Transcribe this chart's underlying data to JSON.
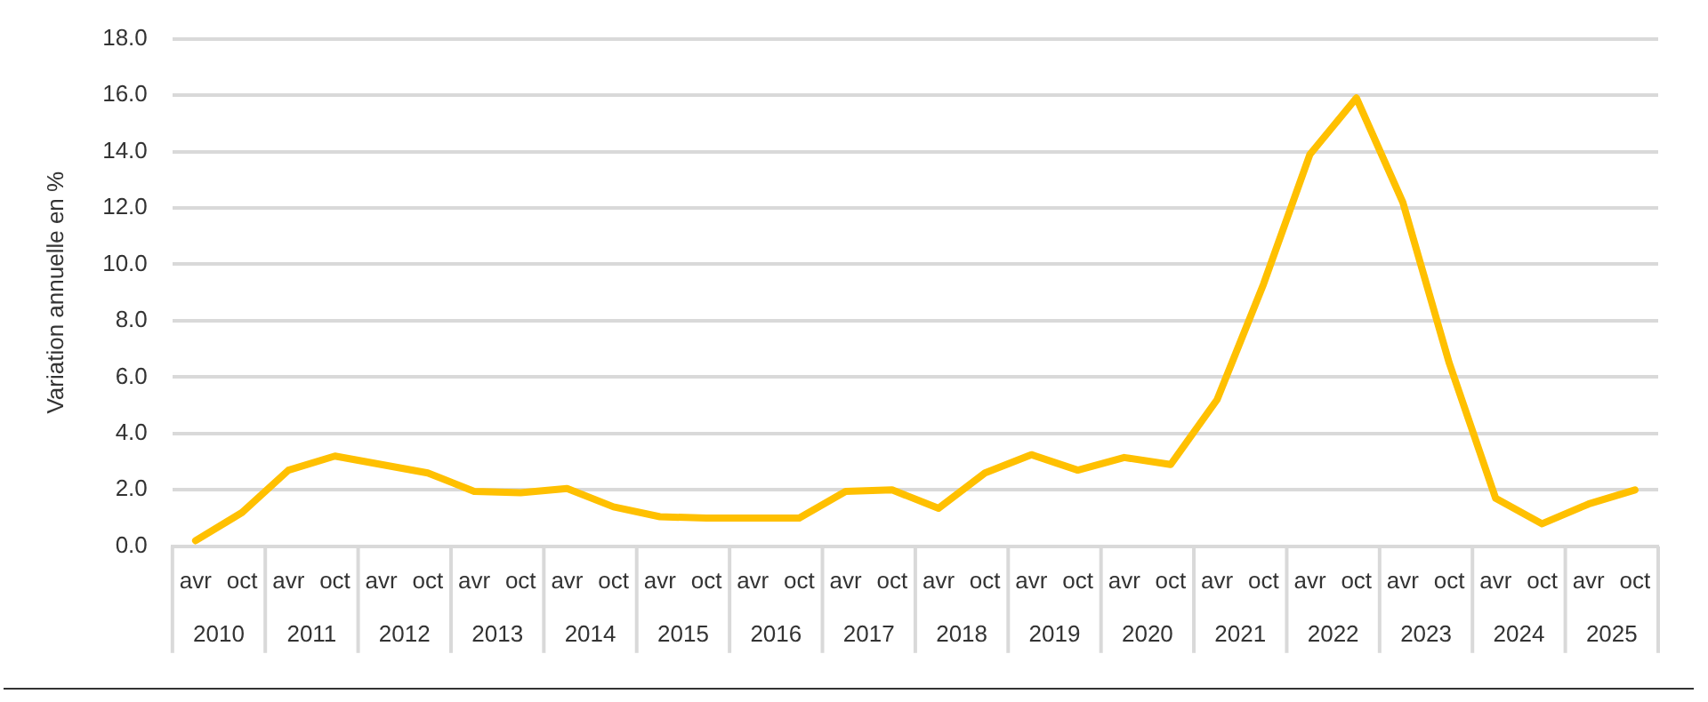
{
  "chart_data": {
    "type": "line",
    "ylabel": "Variation annuelle en %",
    "categories": [
      "avr",
      "oct",
      "avr",
      "oct",
      "avr",
      "oct",
      "avr",
      "oct",
      "avr",
      "oct",
      "avr",
      "oct",
      "avr",
      "oct",
      "avr",
      "oct",
      "avr",
      "oct",
      "avr",
      "oct",
      "avr",
      "oct",
      "avr",
      "oct",
      "avr",
      "oct",
      "avr",
      "oct",
      "avr",
      "oct",
      "avr",
      "oct"
    ],
    "annotations": [
      "2010",
      "2011",
      "2012",
      "2013",
      "2014",
      "2015",
      "2016",
      "2017",
      "2018",
      "2019",
      "2020",
      "2021",
      "2022",
      "2023",
      "2024",
      "2025"
    ],
    "series": [
      {
        "color": "#ffc000",
        "values": [
          0.2,
          1.2,
          2.7,
          3.2,
          2.9,
          2.6,
          1.95,
          1.9,
          2.05,
          1.4,
          1.05,
          1.0,
          1.0,
          1.0,
          1.95,
          2.0,
          1.35,
          2.6,
          3.25,
          2.7,
          3.15,
          2.9,
          5.2,
          9.3,
          13.9,
          15.9,
          12.2,
          6.5,
          1.7,
          0.8,
          1.5,
          2.0
        ]
      }
    ],
    "ylim": [
      0,
      18
    ],
    "yticks": [
      {
        "value": 0,
        "label": "0.0"
      },
      {
        "value": 2,
        "label": "2.0"
      },
      {
        "value": 4,
        "label": "4.0"
      },
      {
        "value": 6,
        "label": "6.0"
      },
      {
        "value": 8,
        "label": "8.0"
      },
      {
        "value": 10,
        "label": "10.0"
      },
      {
        "value": 12,
        "label": "12.0"
      },
      {
        "value": 14,
        "label": "14.0"
      },
      {
        "value": 16,
        "label": "16.0"
      },
      {
        "value": 18,
        "label": "18.0"
      }
    ],
    "grid": "y",
    "legend": false,
    "marker": "none",
    "line_style": "solid"
  }
}
